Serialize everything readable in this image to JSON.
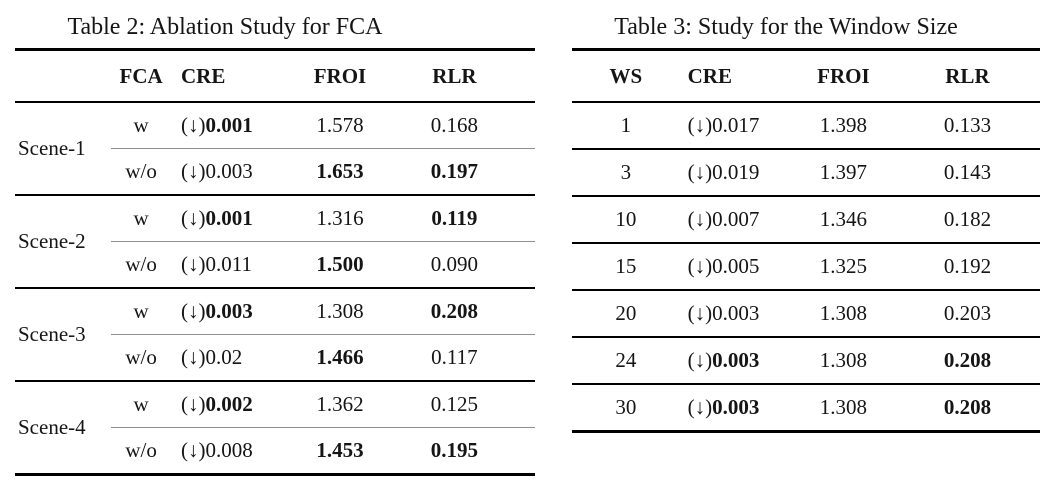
{
  "arrow_prefix": "(↓)",
  "colors": {
    "text": "#151515",
    "rule": "#000000",
    "mid_rule": "#8f8f8f",
    "background": "#ffffff"
  },
  "table2": {
    "title": "Table 2: Ablation Study for FCA",
    "headers": {
      "scene": "",
      "fca": "FCA",
      "cre": "CRE",
      "froi": "FROI",
      "rlr": "RLR"
    },
    "scenes": [
      {
        "label": "Scene-1",
        "rows": [
          {
            "fca": "w",
            "cre": "0.001",
            "cre_bold": true,
            "froi": "1.578",
            "froi_bold": false,
            "rlr": "0.168",
            "rlr_bold": false
          },
          {
            "fca": "w/o",
            "cre": "0.003",
            "cre_bold": false,
            "froi": "1.653",
            "froi_bold": true,
            "rlr": "0.197",
            "rlr_bold": true
          }
        ]
      },
      {
        "label": "Scene-2",
        "rows": [
          {
            "fca": "w",
            "cre": "0.001",
            "cre_bold": true,
            "froi": "1.316",
            "froi_bold": false,
            "rlr": "0.119",
            "rlr_bold": true
          },
          {
            "fca": "w/o",
            "cre": "0.011",
            "cre_bold": false,
            "froi": "1.500",
            "froi_bold": true,
            "rlr": "0.090",
            "rlr_bold": false
          }
        ]
      },
      {
        "label": "Scene-3",
        "rows": [
          {
            "fca": "w",
            "cre": "0.003",
            "cre_bold": true,
            "froi": "1.308",
            "froi_bold": false,
            "rlr": "0.208",
            "rlr_bold": true
          },
          {
            "fca": "w/o",
            "cre": "0.02",
            "cre_bold": false,
            "froi": "1.466",
            "froi_bold": true,
            "rlr": "0.117",
            "rlr_bold": false
          }
        ]
      },
      {
        "label": "Scene-4",
        "rows": [
          {
            "fca": "w",
            "cre": "0.002",
            "cre_bold": true,
            "froi": "1.362",
            "froi_bold": false,
            "rlr": "0.125",
            "rlr_bold": false
          },
          {
            "fca": "w/o",
            "cre": "0.008",
            "cre_bold": false,
            "froi": "1.453",
            "froi_bold": true,
            "rlr": "0.195",
            "rlr_bold": true
          }
        ]
      }
    ]
  },
  "table3": {
    "title": "Table 3: Study for the Window Size",
    "headers": {
      "ws": "WS",
      "cre": "CRE",
      "froi": "FROI",
      "rlr": "RLR"
    },
    "rows": [
      {
        "ws": "1",
        "cre": "0.017",
        "cre_bold": false,
        "froi": "1.398",
        "froi_bold": false,
        "rlr": "0.133",
        "rlr_bold": false
      },
      {
        "ws": "3",
        "cre": "0.019",
        "cre_bold": false,
        "froi": "1.397",
        "froi_bold": false,
        "rlr": "0.143",
        "rlr_bold": false
      },
      {
        "ws": "10",
        "cre": "0.007",
        "cre_bold": false,
        "froi": "1.346",
        "froi_bold": false,
        "rlr": "0.182",
        "rlr_bold": false
      },
      {
        "ws": "15",
        "cre": "0.005",
        "cre_bold": false,
        "froi": "1.325",
        "froi_bold": false,
        "rlr": "0.192",
        "rlr_bold": false
      },
      {
        "ws": "20",
        "cre": "0.003",
        "cre_bold": false,
        "froi": "1.308",
        "froi_bold": false,
        "rlr": "0.203",
        "rlr_bold": false
      },
      {
        "ws": "24",
        "cre": "0.003",
        "cre_bold": true,
        "froi": "1.308",
        "froi_bold": false,
        "rlr": "0.208",
        "rlr_bold": true
      },
      {
        "ws": "30",
        "cre": "0.003",
        "cre_bold": true,
        "froi": "1.308",
        "froi_bold": false,
        "rlr": "0.208",
        "rlr_bold": true
      }
    ]
  }
}
